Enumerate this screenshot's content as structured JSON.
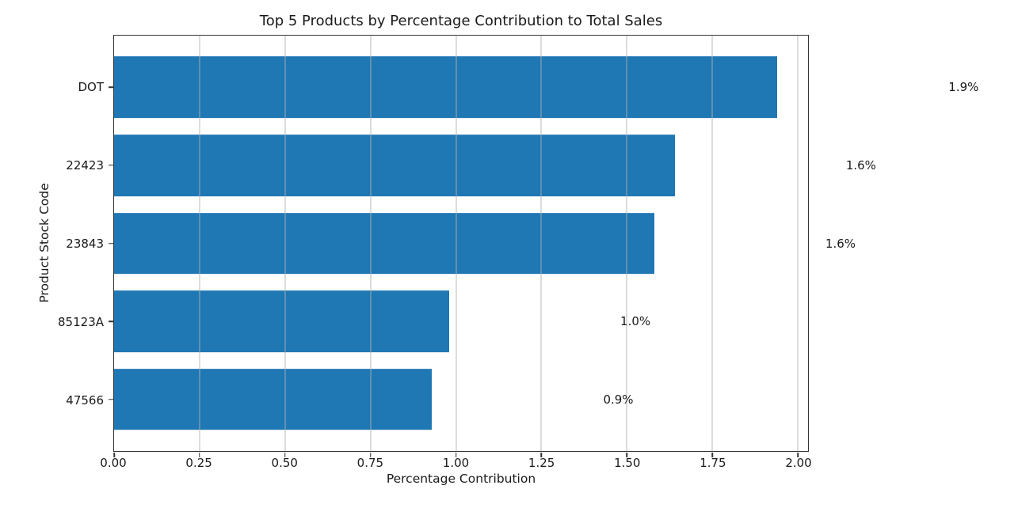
{
  "chart_data": {
    "type": "bar",
    "orientation": "horizontal",
    "title": "Top 5 Products by Percentage Contribution to Total Sales",
    "xlabel": "Percentage Contribution",
    "ylabel": "Product Stock Code",
    "categories": [
      "DOT",
      "22423",
      "23843",
      "85123A",
      "47566"
    ],
    "values": [
      1.94,
      1.64,
      1.58,
      0.98,
      0.93
    ],
    "bar_labels": [
      "1.9%",
      "1.6%",
      "1.6%",
      "1.0%",
      "0.9%"
    ],
    "xticks": [
      "0.00",
      "0.25",
      "0.50",
      "0.75",
      "1.00",
      "1.25",
      "1.50",
      "1.75",
      "2.00"
    ],
    "xlim": [
      0,
      2.03
    ],
    "grid": true,
    "legend": "none",
    "bar_color": "#1f77b4",
    "grid_color": "#b0b0b0",
    "label_offset": 0.545
  }
}
